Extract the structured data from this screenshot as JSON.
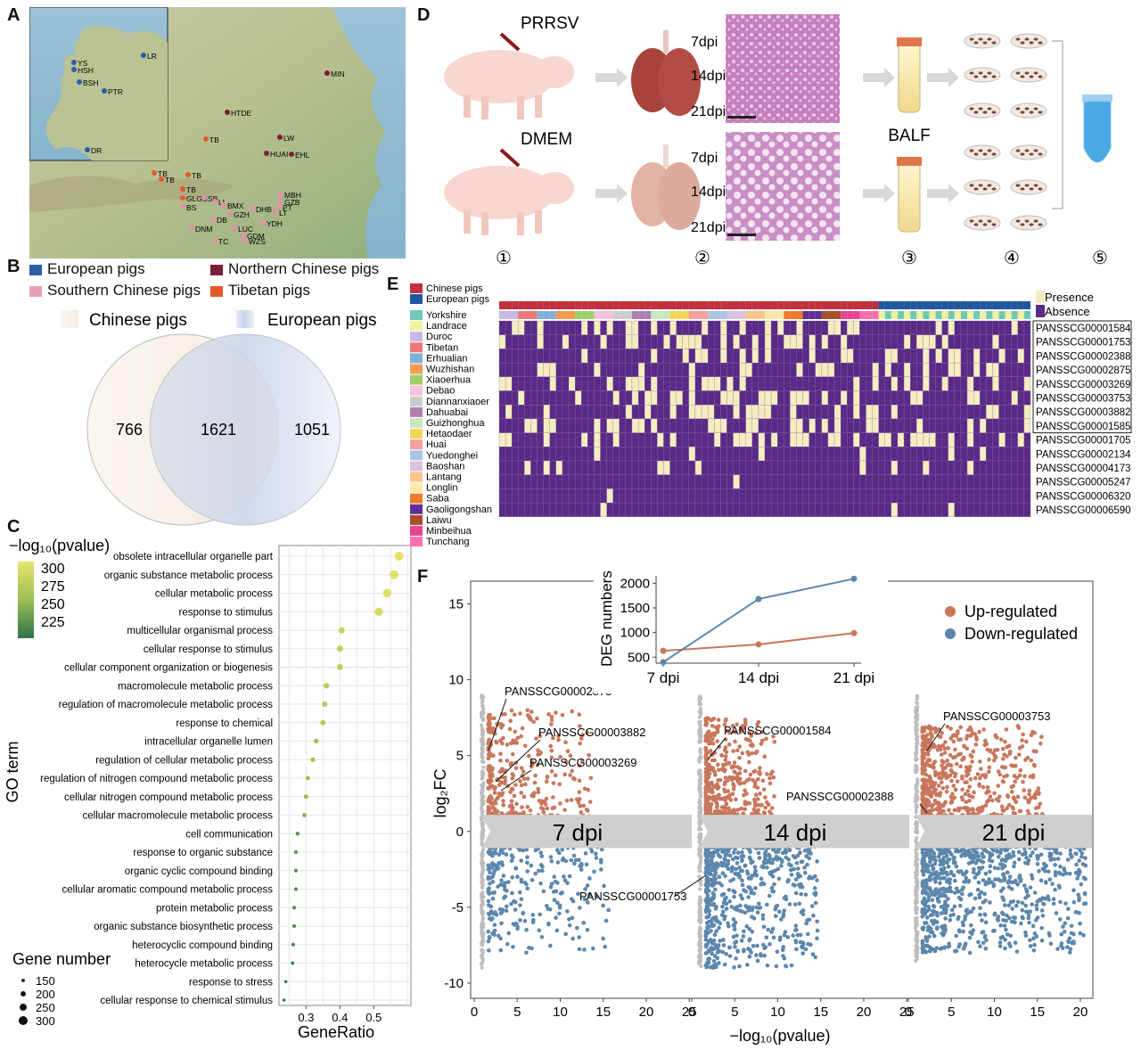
{
  "panels": {
    "a": "A",
    "b": "B",
    "c": "C",
    "d": "D",
    "e": "E",
    "f": "F"
  },
  "map": {
    "sites": [
      {
        "code": "YS",
        "c": "#2b5ea7"
      },
      {
        "code": "HSH",
        "c": "#2b5ea7"
      },
      {
        "code": "LR",
        "c": "#2b5ea7"
      },
      {
        "code": "BSH",
        "c": "#2b5ea7"
      },
      {
        "code": "PTR",
        "c": "#2b5ea7"
      },
      {
        "code": "DR",
        "c": "#2b5ea7"
      },
      {
        "code": "MIN",
        "c": "#7b1e3a"
      },
      {
        "code": "HTDE",
        "c": "#7b1e3a"
      },
      {
        "code": "TB",
        "c": "#e25a2b"
      },
      {
        "code": "LW",
        "c": "#7b1e3a"
      },
      {
        "code": "HUAI",
        "c": "#7b1e3a"
      },
      {
        "code": "EHL",
        "c": "#7b1e3a"
      },
      {
        "code": "TB",
        "c": "#e25a2b"
      },
      {
        "code": "TB",
        "c": "#e25a2b"
      },
      {
        "code": "TB",
        "c": "#e25a2b"
      },
      {
        "code": "TB",
        "c": "#e25a2b"
      },
      {
        "code": "GLGS",
        "c": "#e25a2b"
      },
      {
        "code": "SB",
        "c": "#e58fa8"
      },
      {
        "code": "LL",
        "c": "#e58fa8"
      },
      {
        "code": "BS",
        "c": "#e58fa8"
      },
      {
        "code": "BMX",
        "c": "#e58fa8"
      },
      {
        "code": "GZB",
        "c": "#e58fa8"
      },
      {
        "code": "MBH",
        "c": "#e58fa8"
      },
      {
        "code": "DHB",
        "c": "#e58fa8"
      },
      {
        "code": "GZH",
        "c": "#e58fa8"
      },
      {
        "code": "LT",
        "c": "#e58fa8"
      },
      {
        "code": "PT",
        "c": "#e58fa8"
      },
      {
        "code": "DB",
        "c": "#e58fa8"
      },
      {
        "code": "YDH",
        "c": "#e58fa8"
      },
      {
        "code": "LUC",
        "c": "#e58fa8"
      },
      {
        "code": "DNM",
        "c": "#e58fa8"
      },
      {
        "code": "GDM",
        "c": "#e58fa8"
      },
      {
        "code": "WZS",
        "c": "#e58fa8"
      },
      {
        "code": "TC",
        "c": "#e58fa8"
      }
    ]
  },
  "legend_b": [
    {
      "label": "European  pigs",
      "color": "#2b5ea7"
    },
    {
      "label": "Northern Chinese pigs",
      "color": "#7b1e3a"
    },
    {
      "label": "Southern Chinese pigs",
      "color": "#e8a0b4"
    },
    {
      "label": "Tibetan pigs",
      "color": "#e25a2b"
    }
  ],
  "venn": {
    "left_label": "Chinese pigs",
    "right_label": "European pigs",
    "left": "766",
    "both": "1621",
    "right": "1051"
  },
  "chart_data": [
    {
      "type": "scatter",
      "panel": "C",
      "xlabel": "GeneRatio",
      "ylabel": "GO term",
      "xticks": [
        "0.3",
        "0.4",
        "0.5"
      ],
      "xlim": [
        0.22,
        0.61
      ],
      "color_title": "−log₁₀(pvalue)",
      "color_ticks": [
        "300",
        "275",
        "250",
        "225"
      ],
      "size_title": "Gene number",
      "size_ticks": [
        "150",
        "200",
        "250",
        "300"
      ],
      "terms": [
        {
          "term": "obsolete intracellular organelle part",
          "x": 0.575,
          "p": 318,
          "n": 300
        },
        {
          "term": "organic substance metabolic process",
          "x": 0.56,
          "p": 315,
          "n": 295
        },
        {
          "term": "cellular metabolic process",
          "x": 0.54,
          "p": 312,
          "n": 290
        },
        {
          "term": "response to stimulus",
          "x": 0.515,
          "p": 305,
          "n": 280
        },
        {
          "term": "multicellular organismal process",
          "x": 0.405,
          "p": 295,
          "n": 230
        },
        {
          "term": "cellular response to stimulus",
          "x": 0.4,
          "p": 293,
          "n": 228
        },
        {
          "term": "cellular component organization or biogenesis",
          "x": 0.4,
          "p": 292,
          "n": 227
        },
        {
          "term": "macromolecule metabolic process",
          "x": 0.36,
          "p": 285,
          "n": 210
        },
        {
          "term": "regulation of macromolecule metabolic process",
          "x": 0.355,
          "p": 283,
          "n": 205
        },
        {
          "term": "response to chemical",
          "x": 0.35,
          "p": 282,
          "n": 200
        },
        {
          "term": "intracellular organelle lumen",
          "x": 0.33,
          "p": 275,
          "n": 190
        },
        {
          "term": "regulation of cellular metabolic process",
          "x": 0.32,
          "p": 272,
          "n": 185
        },
        {
          "term": "regulation of nitrogen compound metabolic process",
          "x": 0.305,
          "p": 268,
          "n": 180
        },
        {
          "term": "cellular nitrogen compound metabolic process",
          "x": 0.3,
          "p": 265,
          "n": 178
        },
        {
          "term": "cellular macromolecule metabolic process",
          "x": 0.295,
          "p": 260,
          "n": 175
        },
        {
          "term": "cell communication",
          "x": 0.275,
          "p": 240,
          "n": 165
        },
        {
          "term": "response to organic substance",
          "x": 0.27,
          "p": 238,
          "n": 162
        },
        {
          "term": "organic cyclic compound binding",
          "x": 0.27,
          "p": 236,
          "n": 160
        },
        {
          "term": "cellular aromatic compound metabolic process",
          "x": 0.27,
          "p": 235,
          "n": 160
        },
        {
          "term": "protein metabolic process",
          "x": 0.265,
          "p": 233,
          "n": 158
        },
        {
          "term": "organic substance biosynthetic process",
          "x": 0.265,
          "p": 232,
          "n": 157
        },
        {
          "term": "heterocyclic compound binding",
          "x": 0.262,
          "p": 230,
          "n": 155
        },
        {
          "term": "heterocycle metabolic process",
          "x": 0.26,
          "p": 228,
          "n": 154
        },
        {
          "term": "response to stress",
          "x": 0.24,
          "p": 222,
          "n": 145
        },
        {
          "term": "cellular response to chemical stimulus",
          "x": 0.235,
          "p": 220,
          "n": 140
        }
      ]
    },
    {
      "type": "line",
      "panel": "F-inset",
      "ylabel": "DEG numbers",
      "categories": [
        "7 dpi",
        "14 dpi",
        "21 dpi"
      ],
      "yticks": [
        500,
        1000,
        1500,
        2000
      ],
      "ylim": [
        380,
        2150
      ],
      "series": [
        {
          "name": "Up-regulated",
          "color": "#c8775d",
          "values": [
            630,
            760,
            990
          ]
        },
        {
          "name": "Down-regulated",
          "color": "#5d87ac",
          "values": [
            400,
            1680,
            2090
          ]
        }
      ]
    },
    {
      "type": "scatter",
      "panel": "F",
      "xlabel": "−log₁₀(pvalue)",
      "ylabel": "log₂FC",
      "yticks": [
        -10,
        -5,
        0,
        5,
        10,
        15
      ],
      "xticks": [
        "0",
        "5",
        "10",
        "15",
        "20",
        "25",
        "0",
        "5",
        "10",
        "15",
        "20",
        "25",
        "0",
        "5",
        "10",
        "15",
        "20",
        "25"
      ],
      "legend": [
        {
          "name": "Up-regulated",
          "color": "#c8775d"
        },
        {
          "name": "Down-regulated",
          "color": "#5d87ac"
        }
      ],
      "timepoints": [
        "7 dpi",
        "14 dpi",
        "21 dpi"
      ],
      "annotations": [
        "PANSSCG00002875",
        "PANSSCG00003882",
        "PANSSCG00003269",
        "PANSSCG00001584",
        "PANSSCG00001753",
        "PANSSCG00003753",
        "PANSSCG00002388"
      ]
    }
  ],
  "panel_d": {
    "virus": "PRRSV",
    "control": "DMEM",
    "days": [
      "7dpi",
      "14dpi",
      "21dpi"
    ],
    "balf": "BALF",
    "steps": [
      "①",
      "②",
      "③",
      "④",
      "⑤"
    ]
  },
  "heatmap": {
    "group_legend": [
      {
        "label": "Chinese pigs",
        "color": "#c0303f"
      },
      {
        "label": "European pigs",
        "color": "#1f57a0"
      }
    ],
    "state_legend": [
      {
        "label": "Presence",
        "color": "#f5edc0"
      },
      {
        "label": "Absence",
        "color": "#5a2a87"
      }
    ],
    "breeds": [
      {
        "name": "Yorkshire",
        "color": "#6fc9b5"
      },
      {
        "name": "Landrace",
        "color": "#f3f0a0"
      },
      {
        "name": "Duroc",
        "color": "#c9b8e3"
      },
      {
        "name": "Tibetan",
        "color": "#ee7878"
      },
      {
        "name": "Erhualian",
        "color": "#7fb0d9"
      },
      {
        "name": "Wuzhishan",
        "color": "#f29c50"
      },
      {
        "name": "Xiaoerhua",
        "color": "#9ed06a"
      },
      {
        "name": "Debao",
        "color": "#f6c1dc"
      },
      {
        "name": "Diannanxiaoer",
        "color": "#cccccc"
      },
      {
        "name": "Dahuabai",
        "color": "#b07fb2"
      },
      {
        "name": "Guizhonghua",
        "color": "#c8e8be"
      },
      {
        "name": "Hetaodaer",
        "color": "#f5d45a"
      },
      {
        "name": "Huai",
        "color": "#f5a09a"
      },
      {
        "name": "Yuedonghei",
        "color": "#a9c6e6"
      },
      {
        "name": "Baoshan",
        "color": "#dcc2e0"
      },
      {
        "name": "Lantang",
        "color": "#f9c58a"
      },
      {
        "name": "Longlin",
        "color": "#ffe8a8"
      },
      {
        "name": "Saba",
        "color": "#f07a2a"
      },
      {
        "name": "Gaoligongshan",
        "color": "#5e2f96"
      },
      {
        "name": "Laiwu",
        "color": "#a6502a"
      },
      {
        "name": "Minbeihua",
        "color": "#e7448e"
      },
      {
        "name": "Tunchang",
        "color": "#ff6fb0"
      }
    ],
    "genes": [
      "PANSSCG00001584",
      "PANSSCG00001753",
      "PANSSCG00002388",
      "PANSSCG00002875",
      "PANSSCG00003269",
      "PANSSCG00003753",
      "PANSSCG00003882",
      "PANSSCG00001585",
      "PANSSCG00001705",
      "PANSSCG00002134",
      "PANSSCG00004173",
      "PANSSCG00005247",
      "PANSSCG00006320",
      "PANSSCG00006590"
    ]
  }
}
